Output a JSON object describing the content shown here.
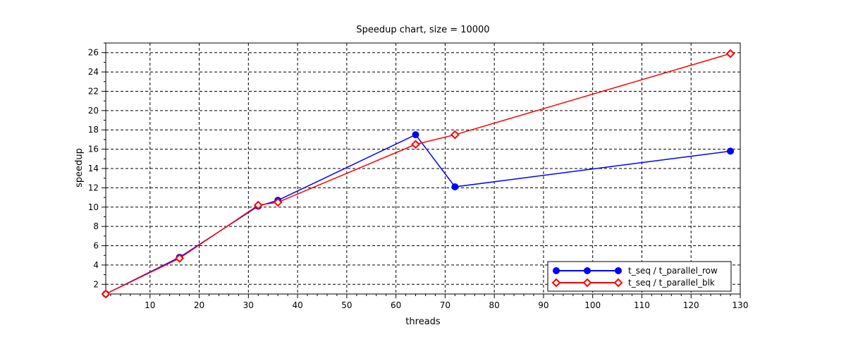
{
  "chart_data": {
    "type": "line",
    "title": "Speedup chart, size = 10000",
    "xlabel": "threads",
    "ylabel": "speedup",
    "xlim": [
      1,
      130
    ],
    "ylim": [
      1,
      27
    ],
    "xticks": [
      10,
      20,
      30,
      40,
      50,
      60,
      70,
      80,
      90,
      100,
      110,
      120,
      130
    ],
    "yticks": [
      2,
      4,
      6,
      8,
      10,
      12,
      14,
      16,
      18,
      20,
      22,
      24,
      26
    ],
    "grid": true,
    "legend_position": "bottom-right",
    "series": [
      {
        "name": "t_seq / t_parallel_row",
        "color": "#0000ff",
        "marker": "circle",
        "x": [
          1,
          16,
          32,
          36,
          64,
          72,
          128
        ],
        "y": [
          1.0,
          4.8,
          10.1,
          10.7,
          17.5,
          12.1,
          15.8
        ]
      },
      {
        "name": "t_seq / t_parallel_blk",
        "color": "#ff0000",
        "marker": "diamond",
        "x": [
          1,
          16,
          32,
          36,
          64,
          72,
          128
        ],
        "y": [
          1.0,
          4.7,
          10.2,
          10.5,
          16.5,
          17.5,
          25.9
        ]
      }
    ]
  }
}
